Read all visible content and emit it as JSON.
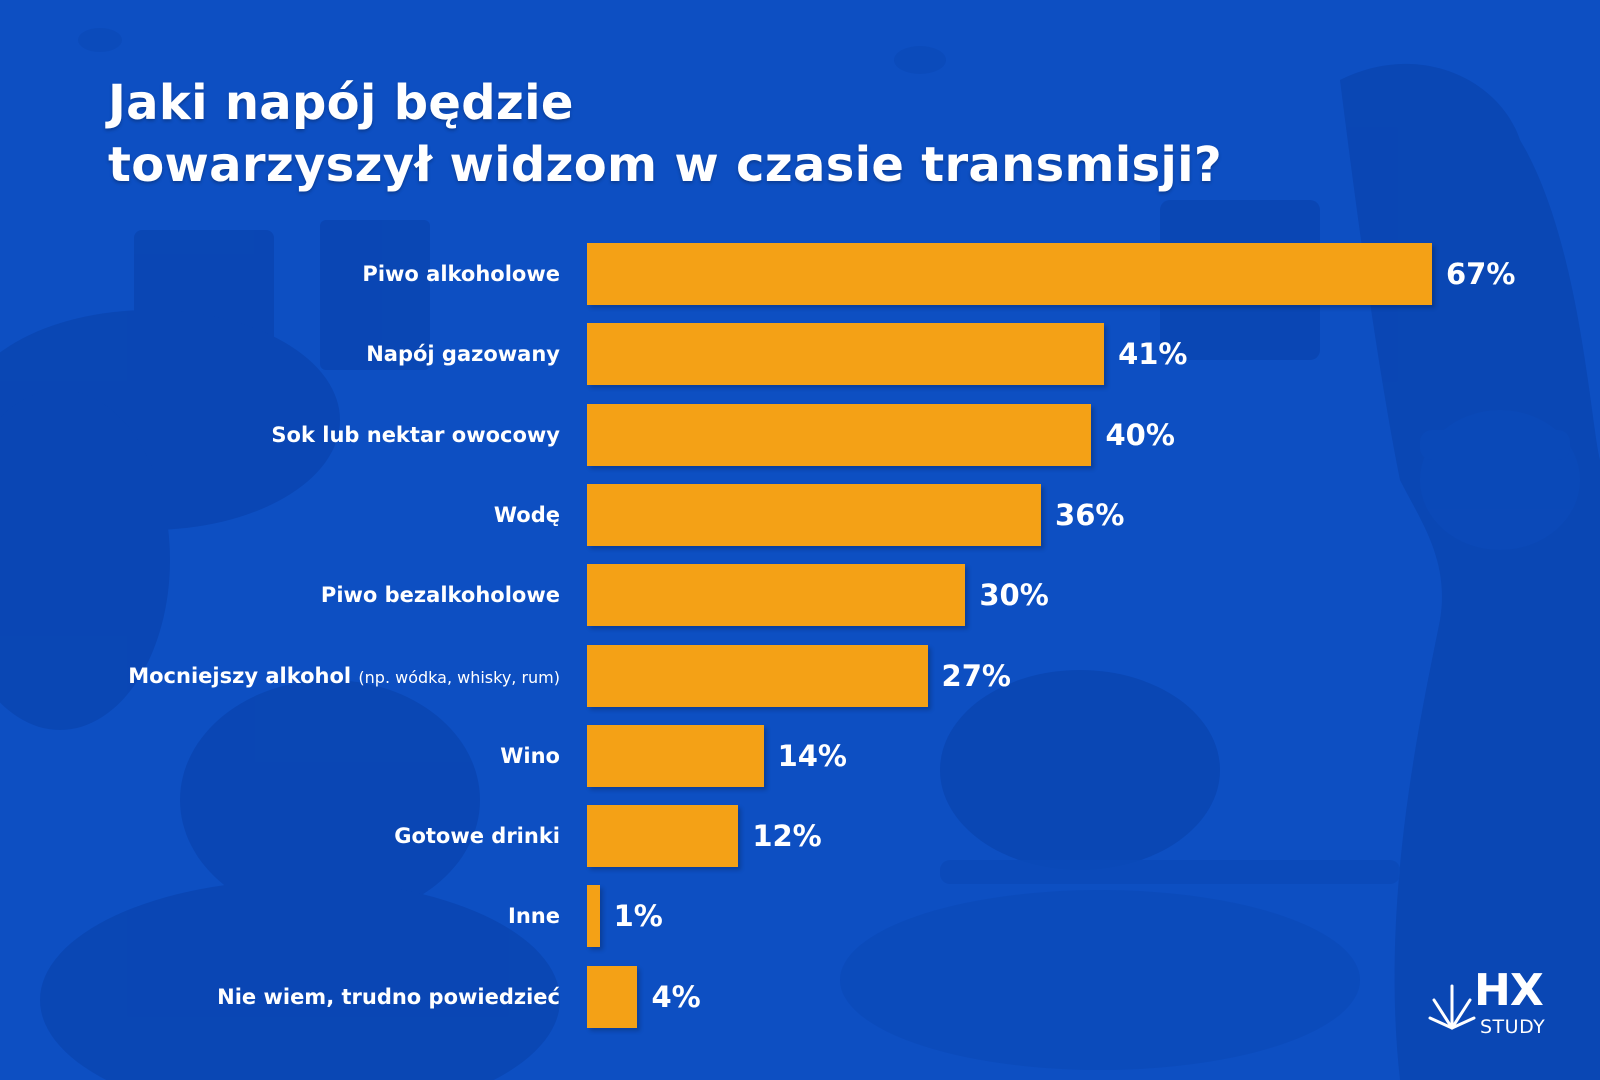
{
  "colors": {
    "background": "#0d4fc2",
    "bar": "#f4a116",
    "text": "#ffffff"
  },
  "chart_data": {
    "type": "bar",
    "orientation": "horizontal",
    "title": "Jaki napój będzie towarzyszył widzom w czasie transmisji?",
    "title_lines": [
      "Jaki napój będzie",
      "towarzyszył widzom w czasie transmisji?"
    ],
    "categories": [
      "Piwo alkoholowe",
      "Napój gazowany",
      "Sok lub nektar owocowy",
      "Wodę",
      "Piwo bezalkoholowe",
      "Mocniejszy alkohol",
      "Wino",
      "Gotowe drinki",
      "Inne",
      "Nie wiem, trudno powiedzieć"
    ],
    "category_notes": [
      "",
      "",
      "",
      "",
      "",
      "(np. wódka, whisky, rum)",
      "",
      "",
      "",
      ""
    ],
    "values": [
      67,
      41,
      40,
      36,
      30,
      27,
      14,
      12,
      1,
      4
    ],
    "value_labels": [
      "67%",
      "41%",
      "40%",
      "36%",
      "30%",
      "27%",
      "14%",
      "12%",
      "1%",
      "4%"
    ],
    "unit": "%",
    "xlim": [
      0,
      67
    ]
  },
  "logo": {
    "mark": "HX",
    "word": "STUDY",
    "icon": "starburst-icon"
  }
}
